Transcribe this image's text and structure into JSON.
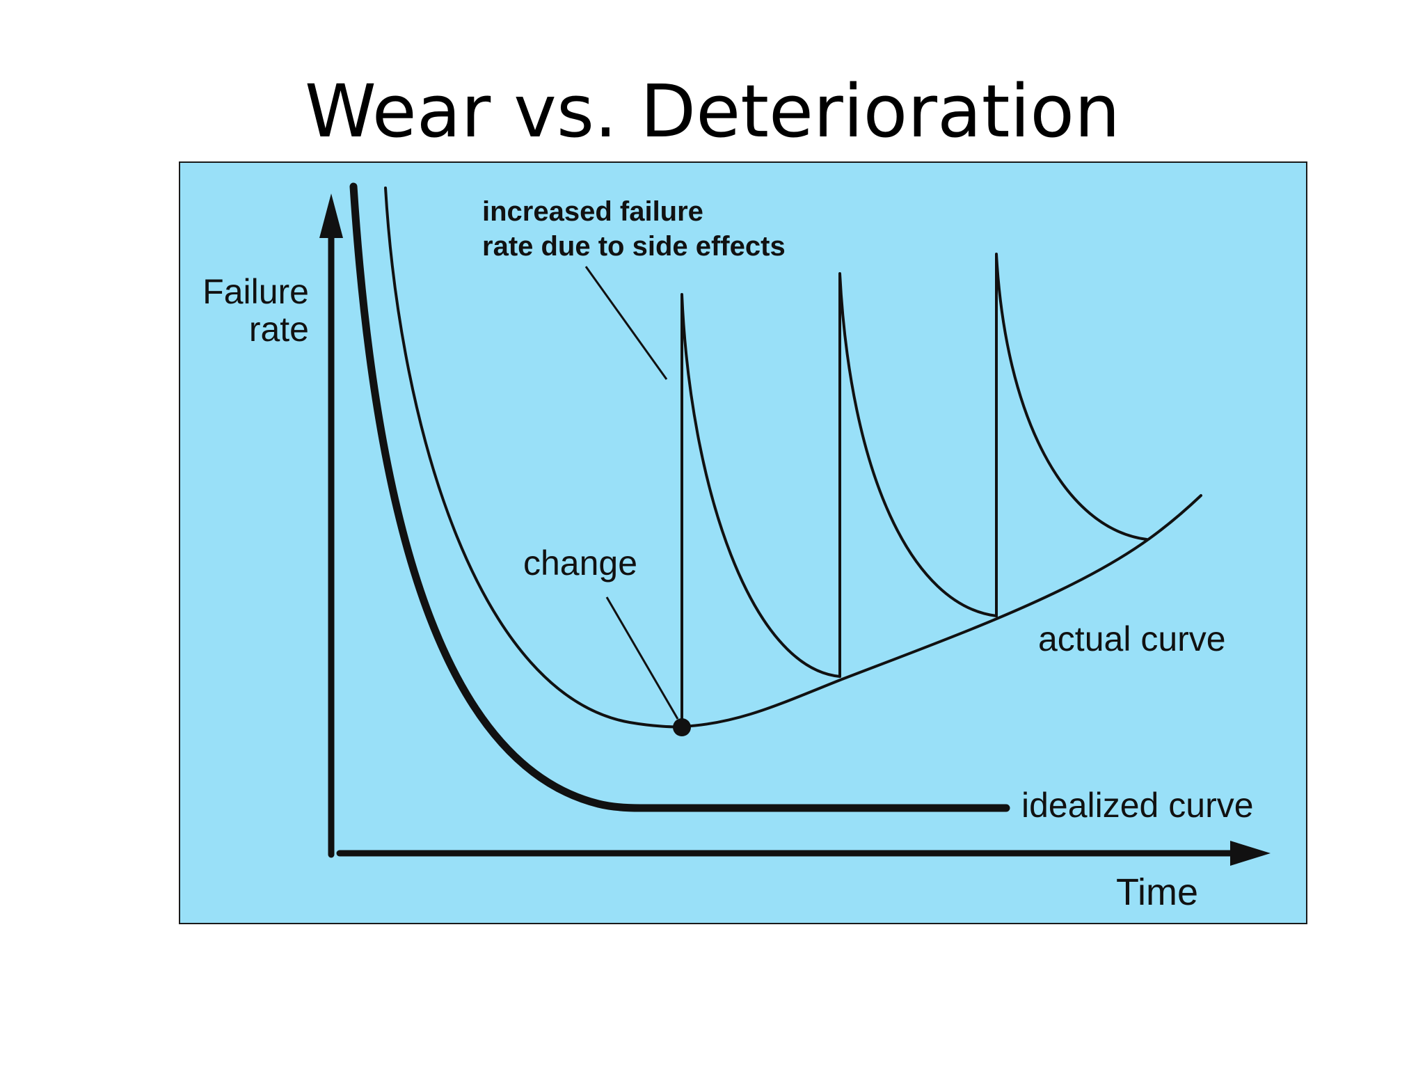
{
  "slide": {
    "title": "Wear vs. Deterioration"
  },
  "diagram": {
    "background_color": "#99e0f8",
    "border_color": "#1a1a1a",
    "line_color": "#111111",
    "y_axis_label_line1": "Failure",
    "y_axis_label_line2": "rate",
    "x_axis_label": "Time",
    "annotation_side_effects_line1": "increased failure",
    "annotation_side_effects_line2": "rate due to side effects",
    "annotation_change": "change",
    "label_actual_curve": "actual curve",
    "label_idealized_curve": "idealized curve"
  }
}
